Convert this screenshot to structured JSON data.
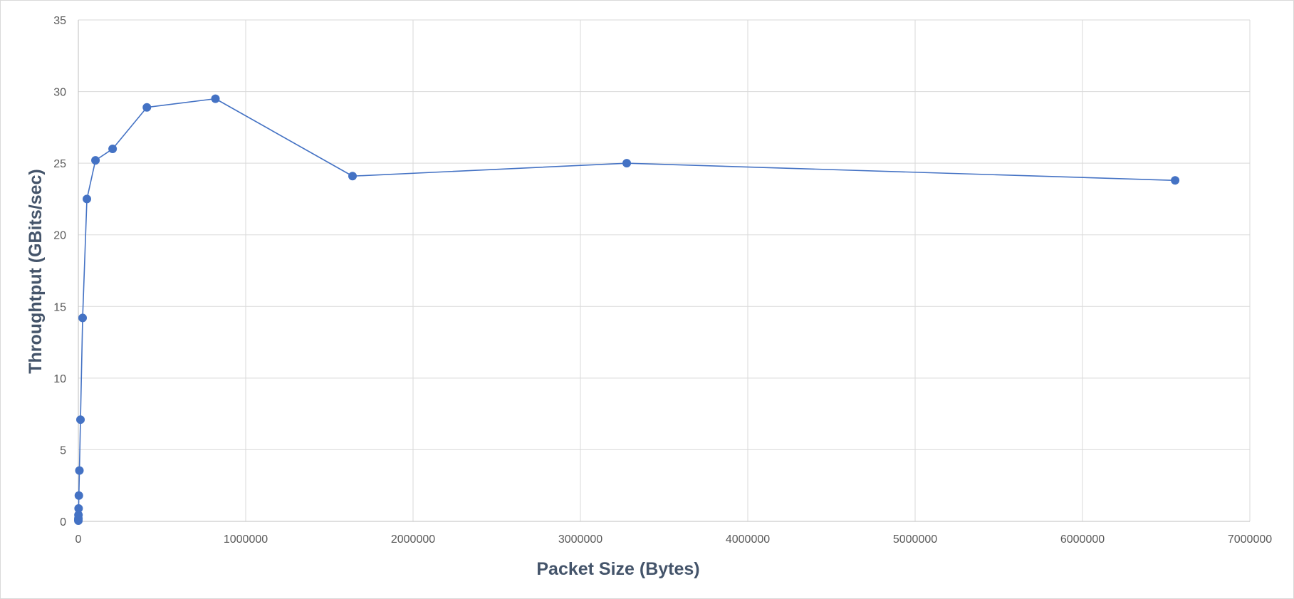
{
  "chart_data": {
    "type": "scatter",
    "title": "",
    "xlabel": "Packet Size (Bytes)",
    "ylabel": "Throughtput (GBits/sec)",
    "xlim": [
      0,
      7000000
    ],
    "ylim": [
      0,
      35
    ],
    "x_ticks": [
      0,
      1000000,
      2000000,
      3000000,
      4000000,
      5000000,
      6000000,
      7000000
    ],
    "y_ticks": [
      0,
      5,
      10,
      15,
      20,
      25,
      30,
      35
    ],
    "grid": true,
    "legend": "none",
    "series": [
      {
        "color": "#4472c4",
        "points": [
          {
            "x": 100,
            "y": 0.05
          },
          {
            "x": 200,
            "y": 0.1
          },
          {
            "x": 400,
            "y": 0.2
          },
          {
            "x": 800,
            "y": 0.45
          },
          {
            "x": 1600,
            "y": 0.9
          },
          {
            "x": 3200,
            "y": 1.8
          },
          {
            "x": 6400,
            "y": 3.55
          },
          {
            "x": 12800,
            "y": 7.1
          },
          {
            "x": 25600,
            "y": 14.2
          },
          {
            "x": 51200,
            "y": 22.5
          },
          {
            "x": 102400,
            "y": 25.2
          },
          {
            "x": 204800,
            "y": 26.0
          },
          {
            "x": 409600,
            "y": 28.9
          },
          {
            "x": 819200,
            "y": 29.5
          },
          {
            "x": 1638400,
            "y": 24.1
          },
          {
            "x": 3276800,
            "y": 25.0
          },
          {
            "x": 6553600,
            "y": 23.8
          }
        ]
      }
    ]
  }
}
